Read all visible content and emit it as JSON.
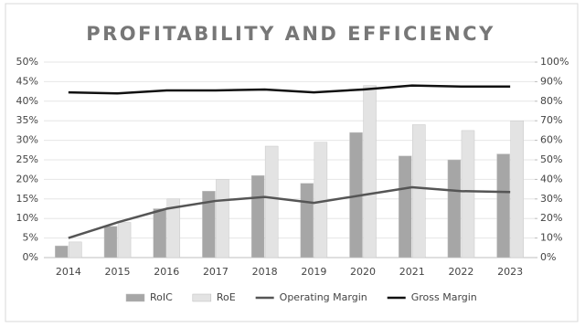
{
  "chart_data": {
    "type": "bar",
    "title": "PROFITABILITY AND EFFICIENCY",
    "categories": [
      "2014",
      "2015",
      "2016",
      "2017",
      "2018",
      "2019",
      "2020",
      "2021",
      "2022",
      "2023"
    ],
    "series": [
      {
        "name": "RoIC",
        "type": "bar",
        "color": "#a6a6a6",
        "values": [
          3,
          8,
          12.5,
          17,
          21,
          19,
          32,
          26,
          25,
          26.5
        ]
      },
      {
        "name": "RoE",
        "type": "bar",
        "color": "#e3e3e3",
        "values": [
          4,
          9,
          15,
          20,
          28.5,
          29.5,
          44,
          34,
          32.5,
          35
        ]
      },
      {
        "name": "Operating Margin",
        "type": "line",
        "axis": "y2",
        "color": "#555555",
        "values": [
          10,
          18,
          25,
          29,
          31,
          28,
          32,
          36,
          34,
          33.5
        ]
      },
      {
        "name": "Gross Margin",
        "type": "line",
        "axis": "y2",
        "color": "#111111",
        "values": [
          84.5,
          84,
          85.5,
          85.5,
          86,
          84.5,
          86,
          88,
          87.5,
          87.5
        ]
      }
    ],
    "ylim": [
      0,
      50
    ],
    "yticks": [
      {
        "value": 0,
        "label": "0%"
      },
      {
        "value": 5,
        "label": "5%"
      },
      {
        "value": 10,
        "label": "10%"
      },
      {
        "value": 15,
        "label": "15%"
      },
      {
        "value": 20,
        "label": "20%"
      },
      {
        "value": 25,
        "label": "25%"
      },
      {
        "value": 30,
        "label": "30%"
      },
      {
        "value": 35,
        "label": "35%"
      },
      {
        "value": 40,
        "label": "40%"
      },
      {
        "value": 45,
        "label": "45%"
      },
      {
        "value": 50,
        "label": "50%"
      }
    ],
    "y2lim": [
      0,
      100
    ],
    "y2ticks": [
      {
        "value": 0,
        "label": "0%"
      },
      {
        "value": 10,
        "label": "10%"
      },
      {
        "value": 20,
        "label": "20%"
      },
      {
        "value": 30,
        "label": "30%"
      },
      {
        "value": 40,
        "label": "40%"
      },
      {
        "value": 50,
        "label": "50%"
      },
      {
        "value": 60,
        "label": "60%"
      },
      {
        "value": 70,
        "label": "70%"
      },
      {
        "value": 80,
        "label": "80%"
      },
      {
        "value": 90,
        "label": "90%"
      },
      {
        "value": 100,
        "label": "100%"
      }
    ],
    "legend": "bottom"
  }
}
